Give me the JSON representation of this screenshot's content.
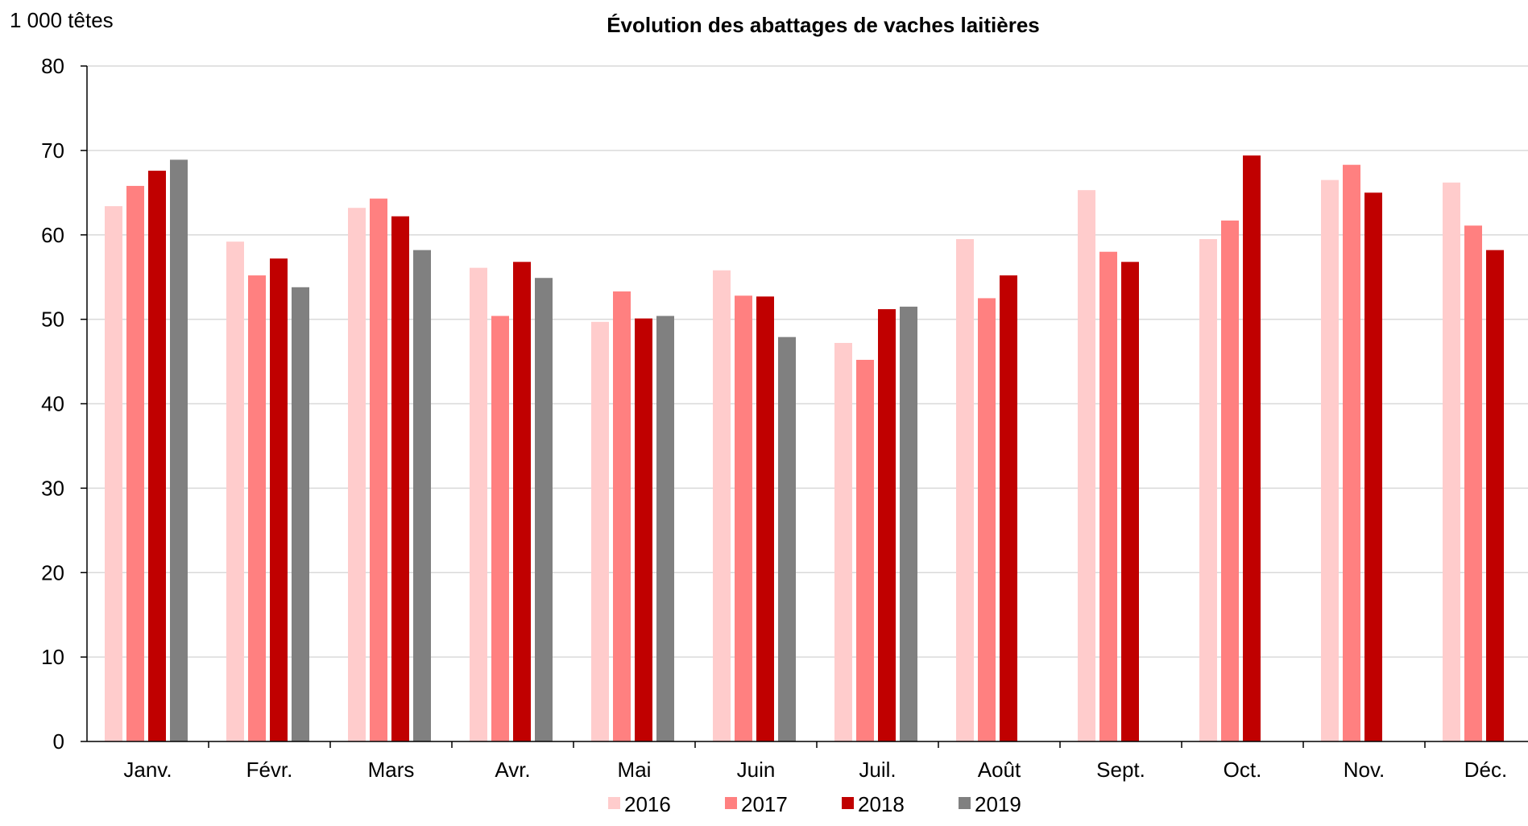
{
  "chart_data": {
    "type": "bar",
    "title": "Évolution des abattages de vaches laitières",
    "ylabel": "1 000 têtes",
    "xlabel": "",
    "ylim": [
      0,
      80
    ],
    "yticks": [
      0,
      10,
      20,
      30,
      40,
      50,
      60,
      70,
      80
    ],
    "grid": true,
    "legend_position": "bottom",
    "categories": [
      "Janv.",
      "Févr.",
      "Mars",
      "Avr.",
      "Mai",
      "Juin",
      "Juil.",
      "Août",
      "Sept.",
      "Oct.",
      "Nov.",
      "Déc."
    ],
    "series": [
      {
        "name": "2016",
        "color": "#ffcccc",
        "values": [
          63.4,
          59.2,
          63.2,
          56.1,
          49.7,
          55.8,
          47.2,
          59.5,
          65.3,
          59.5,
          66.5,
          66.2
        ]
      },
      {
        "name": "2017",
        "color": "#ff8080",
        "values": [
          65.8,
          55.2,
          64.3,
          50.4,
          53.3,
          52.8,
          45.2,
          52.5,
          58.0,
          61.7,
          68.3,
          61.1
        ]
      },
      {
        "name": "2018",
        "color": "#c00000",
        "values": [
          67.6,
          57.2,
          62.2,
          56.8,
          50.1,
          52.7,
          51.2,
          55.2,
          56.8,
          69.4,
          65.0,
          58.2
        ]
      },
      {
        "name": "2019",
        "color": "#808080",
        "values": [
          68.9,
          53.8,
          58.2,
          54.9,
          50.4,
          47.9,
          51.5,
          null,
          null,
          null,
          null,
          null
        ]
      }
    ]
  }
}
